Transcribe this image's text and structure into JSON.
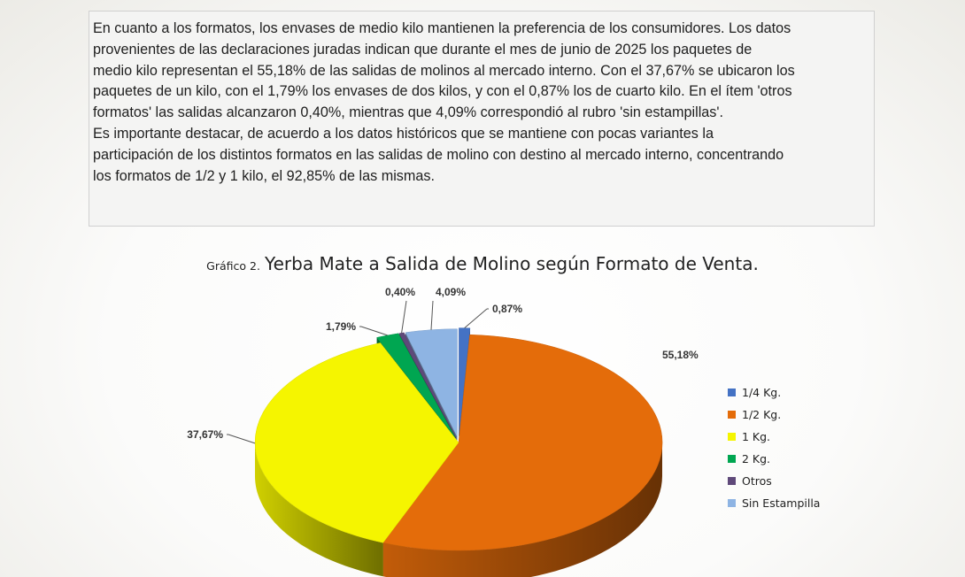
{
  "document": {
    "paragraphs": [
      "En cuanto a los formatos, los envases de medio kilo mantienen la preferencia de los consumidores. Los datos",
      "provenientes de las declaraciones juradas indican que durante el mes de junio de 2025  los paquetes de",
      "medio kilo representan el 55,18% de las salidas de molinos al mercado interno. Con el 37,67% se ubicaron los",
      "paquetes de un kilo, con el 1,79% los envases de dos kilos, y con el 0,87% los de cuarto kilo. En el ítem 'otros",
      "formatos' las salidas alcanzaron 0,40%, mientras que 4,09% correspondió al rubro 'sin estampillas'.",
      "Es importante destacar, de acuerdo a los datos históricos que se mantiene con pocas variantes la",
      "participación de los distintos formatos en las salidas de molino con destino al mercado interno, concentrando",
      "los formatos de 1/2 y 1 kilo, el 92,85% de las mismas."
    ]
  },
  "chart_data": {
    "type": "pie",
    "title_prefix": "Gráfico 2.",
    "title": "Yerba Mate a Salida de Molino según Formato de Venta.",
    "legend_position": "right",
    "three_d": true,
    "slices": [
      {
        "label": "1/4 Kg.",
        "value": 0.87,
        "text": "0,87%",
        "color": "#4472c4"
      },
      {
        "label": "1/2 Kg.",
        "value": 55.18,
        "text": "55,18%",
        "color": "#e46c0a"
      },
      {
        "label": "1 Kg.",
        "value": 37.67,
        "text": "37,67%",
        "color": "#f5f500"
      },
      {
        "label": "2 Kg.",
        "value": 1.79,
        "text": "1,79%",
        "color": "#00a651"
      },
      {
        "label": "Otros",
        "value": 0.4,
        "text": "0,40%",
        "color": "#5f497a"
      },
      {
        "label": "Sin Estampilla",
        "value": 4.09,
        "text": "4,09%",
        "color": "#8eb4e3"
      }
    ]
  }
}
